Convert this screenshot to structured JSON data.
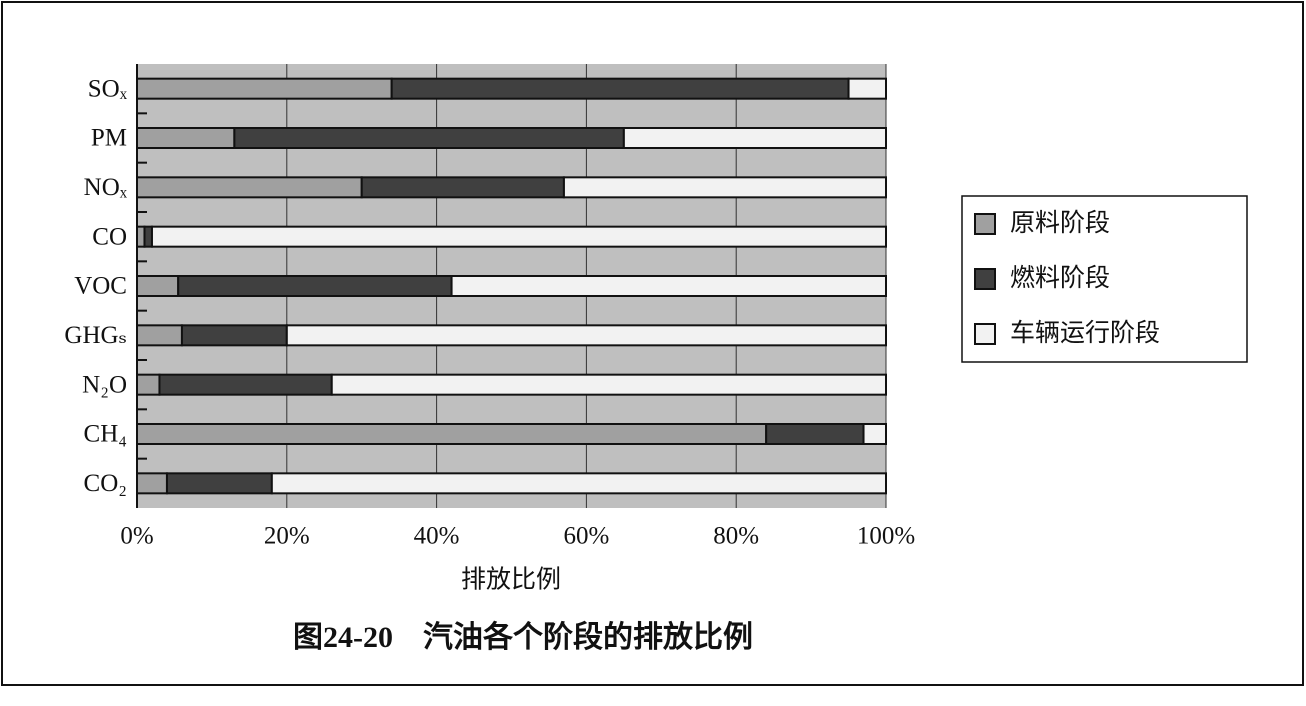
{
  "chart_data": {
    "type": "hbar_stacked",
    "title": "图24-20　汽油各个阶段的排放比例",
    "xlabel": "排放比例",
    "categories": [
      "SOₓ",
      "PM",
      "NOₓ",
      "CO",
      "VOC",
      "GHGₛ",
      "N₂O",
      "CH₄",
      "CO₂"
    ],
    "series": [
      {
        "name": "原料阶段",
        "color": "#a0a0a0",
        "values": [
          34,
          13,
          30,
          1,
          5.5,
          6,
          3,
          84,
          4
        ]
      },
      {
        "name": "燃料阶段",
        "color": "#404040",
        "values": [
          61,
          52,
          27,
          1,
          36.5,
          14,
          23,
          13,
          14
        ]
      },
      {
        "name": "车辆运行阶段",
        "color": "#f2f2f2",
        "values": [
          5,
          35,
          43,
          98,
          58,
          80,
          74,
          3,
          82
        ]
      }
    ],
    "xlim": [
      0,
      100
    ],
    "xticks": [
      {
        "value": 0,
        "label": "0%"
      },
      {
        "value": 20,
        "label": "20%"
      },
      {
        "value": 40,
        "label": "40%"
      },
      {
        "value": 60,
        "label": "60%"
      },
      {
        "value": 80,
        "label": "80%"
      },
      {
        "value": 100,
        "label": "100%"
      }
    ],
    "grid": true,
    "legend": "right"
  }
}
